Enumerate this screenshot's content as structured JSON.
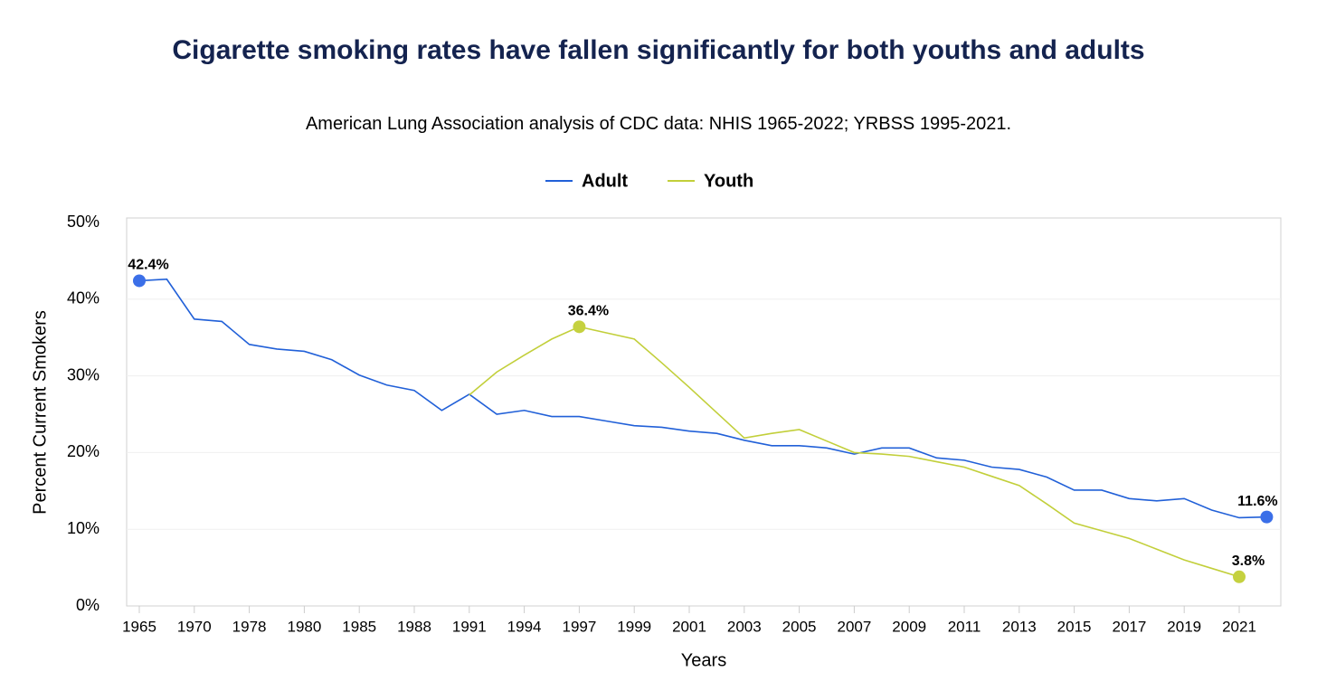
{
  "chart_data": {
    "type": "line",
    "title": "Cigarette smoking rates have fallen significantly for both youths and adults",
    "subtitle": "American Lung Association analysis of CDC data: NHIS 1965-2022; YRBSS 1995-2021.",
    "x_label": "Years",
    "y_label": "Percent Current Smokers",
    "categories": [
      "1965",
      null,
      "1970",
      null,
      "1978",
      null,
      "1980",
      null,
      "1985",
      null,
      "1988",
      null,
      "1991",
      null,
      "1994",
      null,
      "1997",
      null,
      "1999",
      null,
      "2001",
      null,
      "2003",
      null,
      "2005",
      null,
      "2007",
      null,
      "2009",
      null,
      "2011",
      null,
      "2013",
      null,
      "2015",
      null,
      "2017",
      null,
      "2019",
      null,
      "2021",
      null
    ],
    "ylim": [
      0,
      50
    ],
    "yticks": [
      {
        "value": 0,
        "label": "0%"
      },
      {
        "value": 10,
        "label": "10%"
      },
      {
        "value": 20,
        "label": "20%"
      },
      {
        "value": 30,
        "label": "30%"
      },
      {
        "value": 40,
        "label": "40%"
      },
      {
        "value": 50,
        "label": "50%"
      }
    ],
    "grid": true,
    "legend": "top",
    "series": [
      {
        "name": "Adult",
        "color": "#2160d8",
        "values": [
          42.4,
          42.6,
          37.4,
          37.1,
          34.1,
          33.5,
          33.2,
          32.1,
          30.1,
          28.8,
          28.1,
          25.5,
          27.6,
          25.0,
          25.5,
          24.7,
          24.7,
          24.1,
          23.5,
          23.3,
          22.8,
          22.5,
          21.6,
          20.9,
          20.9,
          20.6,
          19.8,
          20.6,
          20.6,
          19.3,
          19.0,
          18.1,
          17.8,
          16.8,
          15.1,
          15.1,
          14.0,
          13.7,
          14.0,
          12.5,
          11.5,
          11.6
        ],
        "value_labels": [
          "42.4%",
          null,
          null,
          null,
          null,
          null,
          null,
          null,
          null,
          null,
          null,
          null,
          null,
          null,
          null,
          null,
          null,
          null,
          null,
          null,
          null,
          null,
          null,
          null,
          null,
          null,
          null,
          null,
          null,
          null,
          null,
          null,
          null,
          null,
          null,
          null,
          null,
          null,
          null,
          null,
          null,
          "11.6%"
        ]
      },
      {
        "name": "Youth",
        "color": "#c2cf3a",
        "values": [
          null,
          null,
          null,
          null,
          null,
          null,
          null,
          null,
          null,
          null,
          null,
          null,
          27.5,
          30.5,
          32.7,
          34.8,
          36.4,
          35.6,
          34.8,
          31.7,
          28.5,
          25.2,
          21.9,
          22.5,
          23.0,
          21.5,
          20.0,
          19.8,
          19.5,
          18.8,
          18.1,
          16.9,
          15.7,
          13.3,
          10.8,
          9.8,
          8.8,
          7.4,
          6.0,
          4.9,
          3.8,
          null
        ],
        "value_labels": [
          null,
          null,
          null,
          null,
          null,
          null,
          null,
          null,
          null,
          null,
          null,
          null,
          null,
          null,
          null,
          null,
          "36.4%",
          null,
          null,
          null,
          null,
          null,
          null,
          null,
          null,
          null,
          null,
          null,
          null,
          null,
          null,
          null,
          null,
          null,
          null,
          null,
          null,
          null,
          null,
          null,
          "3.8%",
          null
        ]
      }
    ]
  }
}
